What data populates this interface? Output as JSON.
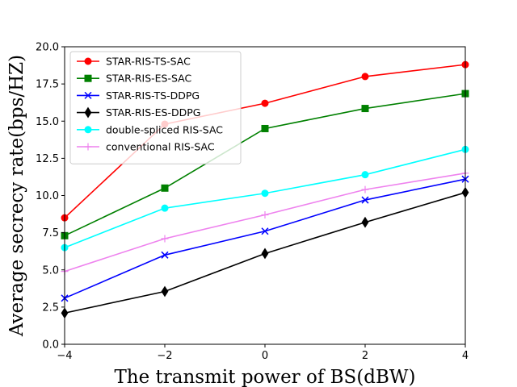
{
  "chart_data": {
    "type": "line",
    "title": "",
    "xlabel": "The transmit power of BS(dBW)",
    "ylabel": "Average secrecy rate(bps/HZ)",
    "x": [
      -4,
      -2,
      0,
      2,
      4
    ],
    "xlim": [
      -4,
      4
    ],
    "ylim": [
      0,
      20
    ],
    "xticks": [
      -4,
      -2,
      0,
      2,
      4
    ],
    "xtick_labels": [
      "−4",
      "−2",
      "0",
      "2",
      "4"
    ],
    "yticks": [
      0,
      2.5,
      5,
      7.5,
      10,
      12.5,
      15,
      17.5,
      20
    ],
    "ytick_labels": [
      "0.0",
      "2.5",
      "5.0",
      "7.5",
      "10.0",
      "12.5",
      "15.0",
      "17.5",
      "20.0"
    ],
    "grid": false,
    "legend_position": "top-left",
    "series": [
      {
        "name": "STAR-RIS-TS-SAC",
        "color": "#ff0000",
        "marker": "circle",
        "values": [
          8.5,
          14.8,
          16.2,
          18.0,
          18.8
        ]
      },
      {
        "name": "STAR-RIS-ES-SAC",
        "color": "#008000",
        "marker": "square",
        "values": [
          7.3,
          10.5,
          14.5,
          15.85,
          16.85
        ]
      },
      {
        "name": "STAR-RIS-TS-DDPG",
        "color": "#0000ff",
        "marker": "x",
        "values": [
          3.1,
          6.0,
          7.6,
          9.7,
          11.1
        ]
      },
      {
        "name": "STAR-RIS-ES-DDPG",
        "color": "#000000",
        "marker": "thin-diamond",
        "values": [
          2.1,
          3.55,
          6.1,
          8.2,
          10.2
        ]
      },
      {
        "name": "double-spliced RIS-SAC",
        "color": "#00ffff",
        "marker": "circle",
        "values": [
          6.5,
          9.15,
          10.15,
          11.4,
          13.1
        ]
      },
      {
        "name": "conventional RIS-SAC",
        "color": "#ee82ee",
        "marker": "plus",
        "values": [
          4.9,
          7.1,
          8.7,
          10.4,
          11.5
        ]
      }
    ]
  }
}
